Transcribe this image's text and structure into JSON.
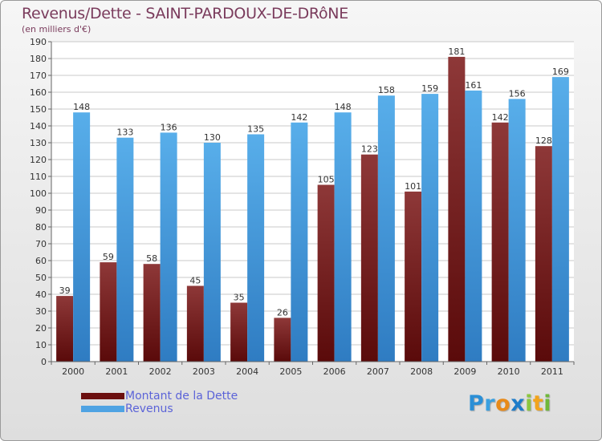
{
  "header": {
    "title": "Revenus/Dette - SAINT-PARDOUX-DE-DRôNE",
    "subtitle": "(en milliers d'€)"
  },
  "chart_data": {
    "type": "bar",
    "title": "Revenus/Dette - SAINT-PARDOUX-DE-DRôNE",
    "subtitle": "(en milliers d'€)",
    "xlabel": "",
    "ylabel": "",
    "categories": [
      "2000",
      "2001",
      "2002",
      "2003",
      "2004",
      "2005",
      "2006",
      "2007",
      "2008",
      "2009",
      "2010",
      "2011"
    ],
    "series": [
      {
        "name": "Montant de la Dette",
        "color": "#8b2e2e",
        "values": [
          39,
          59,
          58,
          45,
          35,
          26,
          105,
          123,
          101,
          181,
          142,
          128
        ]
      },
      {
        "name": "Revenus",
        "color": "#4fa3e3",
        "values": [
          148,
          133,
          136,
          130,
          135,
          142,
          148,
          158,
          159,
          161,
          156,
          169
        ]
      }
    ],
    "ylim": [
      0,
      190
    ],
    "yticks": [
      0,
      10,
      20,
      30,
      40,
      50,
      60,
      70,
      80,
      90,
      100,
      110,
      120,
      130,
      140,
      150,
      160,
      170,
      180,
      190
    ],
    "grid": true,
    "legend_position": "bottom-left"
  },
  "legend": {
    "items": [
      {
        "label": "Montant de la Dette",
        "color": "#6b0f0f"
      },
      {
        "label": "Revenus",
        "color": "#4fa3e3"
      }
    ]
  },
  "logo": {
    "letters": [
      {
        "ch": "P",
        "color": "#2b8fd6"
      },
      {
        "ch": "r",
        "color": "#3aa0e0"
      },
      {
        "ch": "o",
        "color": "#e88a1a"
      },
      {
        "ch": "x",
        "color": "#1d7cc9"
      },
      {
        "ch": "i",
        "color": "#8cc63f"
      },
      {
        "ch": "t",
        "color": "#f2a41c"
      },
      {
        "ch": "i",
        "color": "#6fb83a"
      }
    ]
  }
}
